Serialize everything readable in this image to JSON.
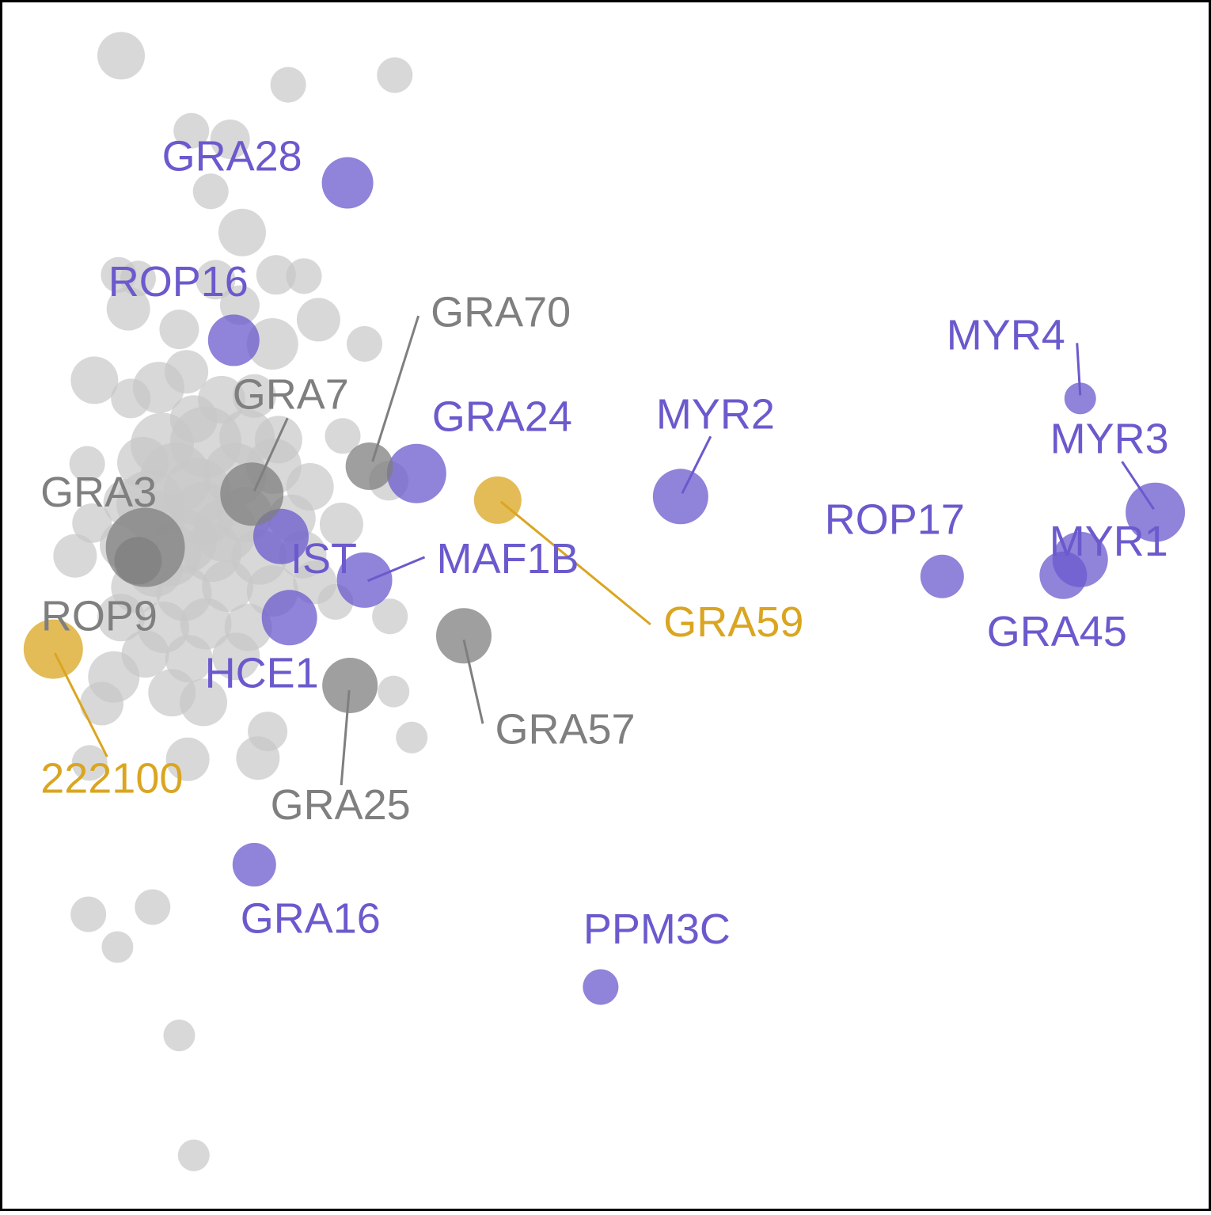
{
  "colors": {
    "background_point": "#c8c8c8",
    "highlight_blue": "#6a5acd",
    "highlight_gold": "#daa520",
    "highlight_gray": "#7f7f7f",
    "frame": "#000000"
  },
  "chart_data": {
    "type": "scatter",
    "title": "",
    "xlabel": "",
    "ylabel": "",
    "axes_visible": false,
    "grid": false,
    "legend": "none",
    "xlim": [
      0,
      100
    ],
    "ylim": [
      0,
      100
    ],
    "background_points": [
      {
        "x": 10.0,
        "y": 95.4,
        "s": 1.2
      },
      {
        "x": 23.8,
        "y": 93.0,
        "s": 0.9
      },
      {
        "x": 32.6,
        "y": 93.8,
        "s": 0.9
      },
      {
        "x": 15.8,
        "y": 89.2,
        "s": 0.9
      },
      {
        "x": 19.0,
        "y": 88.5,
        "s": 1.0
      },
      {
        "x": 17.4,
        "y": 84.2,
        "s": 0.9
      },
      {
        "x": 20.0,
        "y": 80.8,
        "s": 1.2
      },
      {
        "x": 9.8,
        "y": 77.3,
        "s": 0.9
      },
      {
        "x": 11.4,
        "y": 77.0,
        "s": 0.9
      },
      {
        "x": 17.8,
        "y": 76.9,
        "s": 1.0
      },
      {
        "x": 22.8,
        "y": 77.3,
        "s": 1.0
      },
      {
        "x": 25.1,
        "y": 77.2,
        "s": 0.9
      },
      {
        "x": 10.6,
        "y": 74.5,
        "s": 1.1
      },
      {
        "x": 19.8,
        "y": 74.8,
        "s": 1.0
      },
      {
        "x": 26.3,
        "y": 73.6,
        "s": 1.1
      },
      {
        "x": 14.8,
        "y": 72.8,
        "s": 1.0
      },
      {
        "x": 22.5,
        "y": 71.6,
        "s": 1.3
      },
      {
        "x": 30.1,
        "y": 71.6,
        "s": 0.9
      },
      {
        "x": 7.8,
        "y": 68.6,
        "s": 1.2
      },
      {
        "x": 10.8,
        "y": 67.1,
        "s": 1.0
      },
      {
        "x": 13.1,
        "y": 68.0,
        "s": 1.3
      },
      {
        "x": 15.4,
        "y": 69.3,
        "s": 1.1
      },
      {
        "x": 18.3,
        "y": 67.0,
        "s": 1.2
      },
      {
        "x": 21.0,
        "y": 67.3,
        "s": 1.1
      },
      {
        "x": 16.0,
        "y": 65.4,
        "s": 1.2
      },
      {
        "x": 13.4,
        "y": 63.3,
        "s": 1.6
      },
      {
        "x": 17.0,
        "y": 63.5,
        "s": 1.8
      },
      {
        "x": 20.4,
        "y": 63.9,
        "s": 1.4
      },
      {
        "x": 23.0,
        "y": 63.7,
        "s": 1.2
      },
      {
        "x": 28.3,
        "y": 64.0,
        "s": 0.9
      },
      {
        "x": 11.8,
        "y": 61.8,
        "s": 1.3
      },
      {
        "x": 14.5,
        "y": 60.5,
        "s": 1.8
      },
      {
        "x": 19.4,
        "y": 60.8,
        "s": 1.6
      },
      {
        "x": 22.6,
        "y": 61.5,
        "s": 1.4
      },
      {
        "x": 25.6,
        "y": 59.8,
        "s": 1.2
      },
      {
        "x": 7.2,
        "y": 61.7,
        "s": 0.9
      },
      {
        "x": 10.5,
        "y": 58.5,
        "s": 1.2
      },
      {
        "x": 13.0,
        "y": 57.2,
        "s": 1.4
      },
      {
        "x": 16.8,
        "y": 57.6,
        "s": 1.6
      },
      {
        "x": 20.2,
        "y": 57.5,
        "s": 1.4
      },
      {
        "x": 24.1,
        "y": 57.2,
        "s": 1.2
      },
      {
        "x": 28.2,
        "y": 56.7,
        "s": 1.1
      },
      {
        "x": 32.1,
        "y": 60.3,
        "s": 1.0
      },
      {
        "x": 7.6,
        "y": 56.8,
        "s": 1.0
      },
      {
        "x": 10.2,
        "y": 55.0,
        "s": 1.2
      },
      {
        "x": 14.0,
        "y": 54.2,
        "s": 1.6
      },
      {
        "x": 17.5,
        "y": 54.4,
        "s": 1.5
      },
      {
        "x": 21.4,
        "y": 54.0,
        "s": 1.4
      },
      {
        "x": 25.0,
        "y": 54.2,
        "s": 1.2
      },
      {
        "x": 6.2,
        "y": 54.1,
        "s": 1.1
      },
      {
        "x": 11.3,
        "y": 51.5,
        "s": 1.3
      },
      {
        "x": 15.2,
        "y": 51.0,
        "s": 1.4
      },
      {
        "x": 18.8,
        "y": 51.6,
        "s": 1.3
      },
      {
        "x": 22.5,
        "y": 51.2,
        "s": 1.3
      },
      {
        "x": 26.0,
        "y": 51.9,
        "s": 1.1
      },
      {
        "x": 10.0,
        "y": 49.0,
        "s": 1.2
      },
      {
        "x": 13.5,
        "y": 48.2,
        "s": 1.3
      },
      {
        "x": 17.0,
        "y": 48.5,
        "s": 1.3
      },
      {
        "x": 20.5,
        "y": 48.2,
        "s": 1.2
      },
      {
        "x": 27.7,
        "y": 50.3,
        "s": 0.9
      },
      {
        "x": 32.2,
        "y": 49.1,
        "s": 0.9
      },
      {
        "x": 12.0,
        "y": 46.0,
        "s": 1.2
      },
      {
        "x": 15.6,
        "y": 45.6,
        "s": 1.2
      },
      {
        "x": 19.5,
        "y": 45.8,
        "s": 1.2
      },
      {
        "x": 9.4,
        "y": 44.1,
        "s": 1.3
      },
      {
        "x": 14.2,
        "y": 42.8,
        "s": 1.2
      },
      {
        "x": 16.8,
        "y": 42.0,
        "s": 1.2
      },
      {
        "x": 32.5,
        "y": 42.9,
        "s": 0.8
      },
      {
        "x": 8.4,
        "y": 41.9,
        "s": 1.1
      },
      {
        "x": 22.1,
        "y": 39.6,
        "s": 1.0
      },
      {
        "x": 34.0,
        "y": 39.1,
        "s": 0.8
      },
      {
        "x": 15.5,
        "y": 37.3,
        "s": 1.1
      },
      {
        "x": 7.4,
        "y": 37.0,
        "s": 0.9
      },
      {
        "x": 21.3,
        "y": 37.4,
        "s": 1.1
      },
      {
        "x": 7.3,
        "y": 24.5,
        "s": 0.9
      },
      {
        "x": 12.6,
        "y": 25.1,
        "s": 0.9
      },
      {
        "x": 9.7,
        "y": 21.8,
        "s": 0.8
      },
      {
        "x": 14.8,
        "y": 14.5,
        "s": 0.8
      },
      {
        "x": 16.0,
        "y": 4.6,
        "s": 0.8
      },
      {
        "x": 12.4,
        "y": 58.4,
        "s": 1.7
      },
      {
        "x": 16.3,
        "y": 59.4,
        "s": 1.7
      },
      {
        "x": 18.6,
        "y": 56.2,
        "s": 1.6
      },
      {
        "x": 15.3,
        "y": 55.3,
        "s": 1.6
      },
      {
        "x": 12.8,
        "y": 53.0,
        "s": 1.4
      }
    ],
    "highlight_points": [
      {
        "label": "GRA28",
        "group": "blue",
        "x": 28.7,
        "y": 84.9,
        "s": 1.3
      },
      {
        "label": "ROP16",
        "group": "blue",
        "x": 19.3,
        "y": 71.9,
        "s": 1.3
      },
      {
        "label": "GRA24",
        "group": "blue",
        "x": 34.4,
        "y": 60.9,
        "s": 1.5
      },
      {
        "label": "MYR2",
        "group": "blue",
        "x": 56.2,
        "y": 59.0,
        "s": 1.4
      },
      {
        "label": "MYR4",
        "group": "blue",
        "x": 89.2,
        "y": 67.1,
        "s": 0.8
      },
      {
        "label": "MYR3",
        "group": "blue",
        "x": 95.4,
        "y": 57.7,
        "s": 1.5
      },
      {
        "label": "MYR1",
        "group": "blue",
        "x": 89.2,
        "y": 53.8,
        "s": 1.4
      },
      {
        "label": "ROP17",
        "group": "blue",
        "x": 77.8,
        "y": 52.4,
        "s": 1.1
      },
      {
        "label": "GRA45",
        "group": "blue",
        "x": 87.8,
        "y": 52.5,
        "s": 1.2
      },
      {
        "label": "IST",
        "group": "blue",
        "x": 23.2,
        "y": 55.7,
        "s": 1.4
      },
      {
        "label": "MAF1B",
        "group": "blue",
        "x": 30.1,
        "y": 52.1,
        "s": 1.4
      },
      {
        "label": "HCE1",
        "group": "blue",
        "x": 23.9,
        "y": 49.0,
        "s": 1.4
      },
      {
        "label": "GRA16",
        "group": "blue",
        "x": 21.0,
        "y": 28.6,
        "s": 1.1
      },
      {
        "label": "PPM3C",
        "group": "blue",
        "x": 49.6,
        "y": 18.5,
        "s": 0.9
      },
      {
        "label": "GRA59",
        "group": "gold",
        "x": 41.1,
        "y": 58.7,
        "s": 1.2
      },
      {
        "label": "222100",
        "group": "gold",
        "x": 4.4,
        "y": 46.4,
        "s": 1.5
      },
      {
        "label": "GRA70",
        "group": "gray",
        "x": 30.5,
        "y": 61.5,
        "s": 1.2
      },
      {
        "label": "GRA7",
        "group": "gray",
        "x": 20.8,
        "y": 59.2,
        "s": 1.6
      },
      {
        "label": "GRA3",
        "group": "gray",
        "x": 12.0,
        "y": 54.8,
        "s": 2.0
      },
      {
        "label": "ROP9",
        "group": "gray",
        "x": 11.4,
        "y": 53.7,
        "s": 1.2
      },
      {
        "label": "GRA57",
        "group": "gray",
        "x": 38.3,
        "y": 47.5,
        "s": 1.4
      },
      {
        "label": "GRA25",
        "group": "gray",
        "x": 28.9,
        "y": 43.4,
        "s": 1.4
      }
    ]
  }
}
